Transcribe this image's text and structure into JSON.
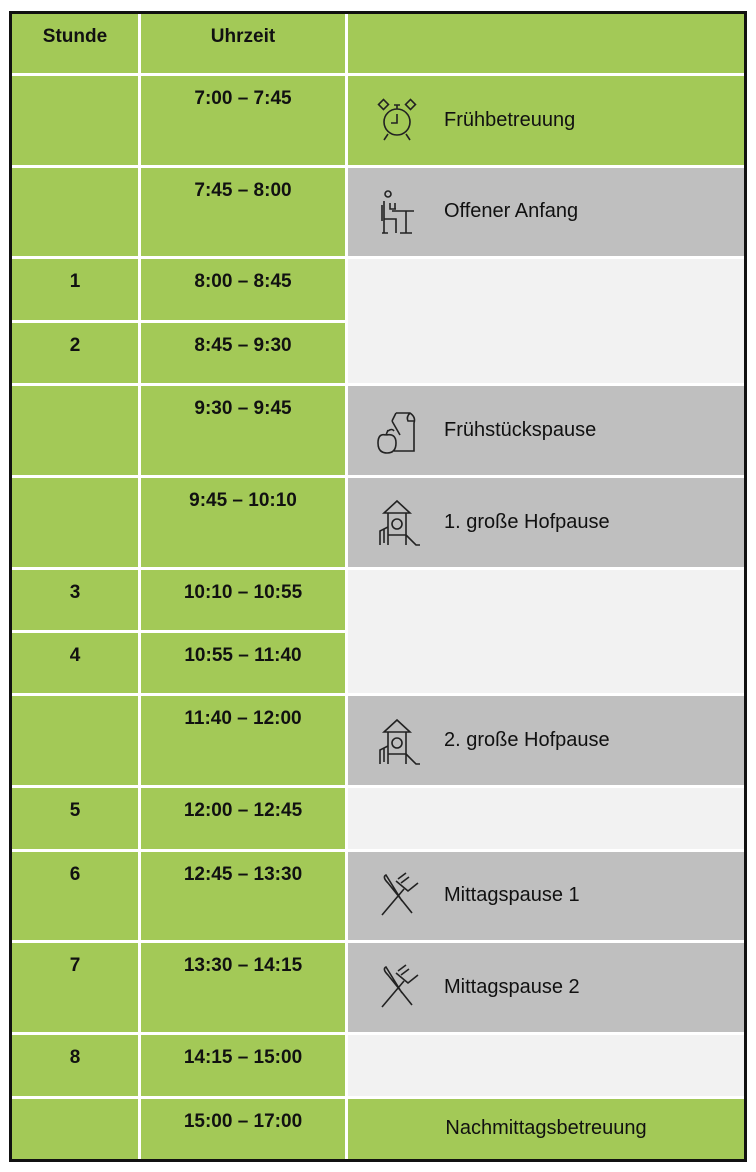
{
  "header": {
    "col1": "Stunde",
    "col2": "Uhrzeit",
    "col3": ""
  },
  "colors": {
    "green": "#a3c957",
    "gray": "#bfbfbf",
    "light": "#f2f2f2"
  },
  "rows": [
    {
      "stunde": "",
      "time": "7:00 – 7:45",
      "activity": "Frühbetreuung",
      "icon": "alarm-clock-icon"
    },
    {
      "stunde": "",
      "time": "7:45 – 8:00",
      "activity": "Offener Anfang",
      "icon": "person-at-desk-icon"
    },
    {
      "stunde": "1",
      "time": "8:00 – 8:45",
      "activity": ""
    },
    {
      "stunde": "2",
      "time": "8:45 – 9:30",
      "activity": ""
    },
    {
      "stunde": "",
      "time": "9:30 – 9:45",
      "activity": "Frühstückspause",
      "icon": "lunch-bag-apple-icon"
    },
    {
      "stunde": "",
      "time": "9:45 – 10:10",
      "activity": "1. große Hofpause",
      "icon": "playground-icon"
    },
    {
      "stunde": "3",
      "time": "10:10 – 10:55",
      "activity": ""
    },
    {
      "stunde": "4",
      "time": "10:55 – 11:40",
      "activity": ""
    },
    {
      "stunde": "",
      "time": "11:40 – 12:00",
      "activity": "2. große Hofpause",
      "icon": "playground-icon"
    },
    {
      "stunde": "5",
      "time": "12:00 – 12:45",
      "activity": ""
    },
    {
      "stunde": "6",
      "time": "12:45 – 13:30",
      "activity": "Mittagspause 1",
      "icon": "fork-knife-icon"
    },
    {
      "stunde": "7",
      "time": "13:30 – 14:15",
      "activity": "Mittagspause 2",
      "icon": "fork-knife-icon"
    },
    {
      "stunde": "8",
      "time": "14:15 – 15:00",
      "activity": ""
    },
    {
      "stunde": "",
      "time": "15:00 – 17:00",
      "activity": "Nachmittagsbetreuung"
    }
  ]
}
